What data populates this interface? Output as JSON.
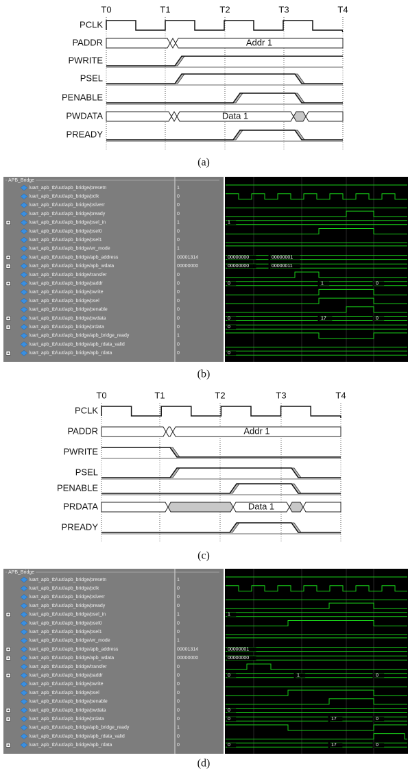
{
  "panels": [
    {
      "caption": "(a)",
      "time_labels": [
        "T0",
        "T1",
        "T2",
        "T3",
        "T4"
      ],
      "signals": [
        {
          "name": "PCLK"
        },
        {
          "name": "PADDR",
          "label": "Addr 1"
        },
        {
          "name": "PWRITE"
        },
        {
          "name": "PSEL"
        },
        {
          "name": "PENABLE"
        },
        {
          "name": "PWDATA",
          "label": "Data 1"
        },
        {
          "name": "PREADY"
        }
      ]
    },
    {
      "caption": "(b)",
      "group": "APB_Bridge",
      "signals": [
        {
          "path": "/uart_apb_tb/uut/apb_bridge/presetn",
          "value": "1"
        },
        {
          "path": "/uart_apb_tb/uut/apb_bridge/pclk",
          "value": "0"
        },
        {
          "path": "/uart_apb_tb/uut/apb_bridge/pslverr",
          "value": "0"
        },
        {
          "path": "/uart_apb_tb/uut/apb_bridge/pready",
          "value": "0"
        },
        {
          "path": "/uart_apb_tb/uut/apb_bridge/psel_in",
          "value": "1",
          "wave_labels": [
            "1"
          ]
        },
        {
          "path": "/uart_apb_tb/uut/apb_bridge/psel0",
          "value": "0"
        },
        {
          "path": "/uart_apb_tb/uut/apb_bridge/psel1",
          "value": "0"
        },
        {
          "path": "/uart_apb_tb/uut/apb_bridge/wr_mode",
          "value": "1"
        },
        {
          "path": "/uart_apb_tb/uut/apb_bridge/apb_address",
          "value": "00001314",
          "wave_labels": [
            "00000000",
            "00000001"
          ]
        },
        {
          "path": "/uart_apb_tb/uut/apb_bridge/apb_wdata",
          "value": "00000000",
          "wave_labels": [
            "00000000",
            "00000011"
          ]
        },
        {
          "path": "/uart_apb_tb/uut/apb_bridge/transfer",
          "value": "0"
        },
        {
          "path": "/uart_apb_tb/uut/apb_bridge/paddr",
          "value": "0",
          "wave_labels": [
            "0",
            "1",
            "0"
          ]
        },
        {
          "path": "/uart_apb_tb/uut/apb_bridge/pwrite",
          "value": "0"
        },
        {
          "path": "/uart_apb_tb/uut/apb_bridge/psel",
          "value": "0"
        },
        {
          "path": "/uart_apb_tb/uut/apb_bridge/penable",
          "value": "0"
        },
        {
          "path": "/uart_apb_tb/uut/apb_bridge/pwdata",
          "value": "0",
          "wave_labels": [
            "0",
            "17",
            "0"
          ]
        },
        {
          "path": "/uart_apb_tb/uut/apb_bridge/prdata",
          "value": "0",
          "wave_labels": [
            "0"
          ]
        },
        {
          "path": "/uart_apb_tb/uut/apb_bridge/apb_bridge_ready",
          "value": "1"
        },
        {
          "path": "/uart_apb_tb/uut/apb_bridge/apb_rdata_valid",
          "value": "0"
        },
        {
          "path": "/uart_apb_tb/uut/apb_bridge/apb_rdata",
          "value": "0",
          "wave_labels": [
            "0"
          ]
        }
      ]
    },
    {
      "caption": "(c)",
      "time_labels": [
        "T0",
        "T1",
        "T2",
        "T3",
        "T4"
      ],
      "signals": [
        {
          "name": "PCLK"
        },
        {
          "name": "PADDR",
          "label": "Addr 1"
        },
        {
          "name": "PWRITE"
        },
        {
          "name": "PSEL"
        },
        {
          "name": "PENABLE"
        },
        {
          "name": "PRDATA",
          "label": "Data 1"
        },
        {
          "name": "PREADY"
        }
      ]
    },
    {
      "caption": "(d)",
      "group": "APB_Bridge",
      "signals": [
        {
          "path": "/uart_apb_tb/uut/apb_bridge/presetn",
          "value": "1"
        },
        {
          "path": "/uart_apb_tb/uut/apb_bridge/pclk",
          "value": "0"
        },
        {
          "path": "/uart_apb_tb/uut/apb_bridge/pslverr",
          "value": "0"
        },
        {
          "path": "/uart_apb_tb/uut/apb_bridge/pready",
          "value": "0"
        },
        {
          "path": "/uart_apb_tb/uut/apb_bridge/psel_in",
          "value": "1",
          "wave_labels": [
            "1"
          ]
        },
        {
          "path": "/uart_apb_tb/uut/apb_bridge/psel0",
          "value": "0"
        },
        {
          "path": "/uart_apb_tb/uut/apb_bridge/psel1",
          "value": "0"
        },
        {
          "path": "/uart_apb_tb/uut/apb_bridge/wr_mode",
          "value": "1"
        },
        {
          "path": "/uart_apb_tb/uut/apb_bridge/apb_address",
          "value": "00001314",
          "wave_labels": [
            "00000001"
          ]
        },
        {
          "path": "/uart_apb_tb/uut/apb_bridge/apb_wdata",
          "value": "00000000",
          "wave_labels": [
            "00000000"
          ]
        },
        {
          "path": "/uart_apb_tb/uut/apb_bridge/transfer",
          "value": "0"
        },
        {
          "path": "/uart_apb_tb/uut/apb_bridge/paddr",
          "value": "0",
          "wave_labels": [
            "0",
            "1",
            "0"
          ]
        },
        {
          "path": "/uart_apb_tb/uut/apb_bridge/pwrite",
          "value": "0"
        },
        {
          "path": "/uart_apb_tb/uut/apb_bridge/psel",
          "value": "0"
        },
        {
          "path": "/uart_apb_tb/uut/apb_bridge/penable",
          "value": "0"
        },
        {
          "path": "/uart_apb_tb/uut/apb_bridge/pwdata",
          "value": "0",
          "wave_labels": [
            "0"
          ]
        },
        {
          "path": "/uart_apb_tb/uut/apb_bridge/prdata",
          "value": "0",
          "wave_labels": [
            "0",
            "17",
            "0"
          ]
        },
        {
          "path": "/uart_apb_tb/uut/apb_bridge/apb_bridge_ready",
          "value": "1"
        },
        {
          "path": "/uart_apb_tb/uut/apb_bridge/apb_rdata_valid",
          "value": "0"
        },
        {
          "path": "/uart_apb_tb/uut/apb_bridge/apb_rdata",
          "value": "0",
          "wave_labels": [
            "0",
            "17",
            "0"
          ]
        }
      ]
    }
  ]
}
